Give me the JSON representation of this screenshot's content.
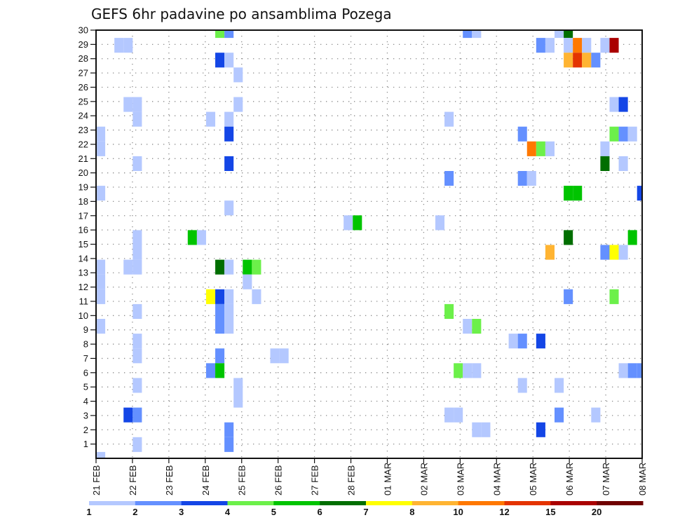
{
  "chart_data": {
    "type": "heatmap",
    "title": "GEFS 6hr padavine po ansamblima Pozega",
    "xlabel": "",
    "ylabel": "",
    "x_unit": "6-hour step from 21 FEB",
    "x_steps": 60,
    "x_tick_labels": [
      "21 FEB",
      "22 FEB",
      "23 FEB",
      "24 FEB",
      "25 FEB",
      "26 FEB",
      "27 FEB",
      "28 FEB",
      "01 MAR",
      "02 MAR",
      "03 MAR",
      "04 MAR",
      "05 MAR",
      "06 MAR",
      "07 MAR",
      "08 MAR"
    ],
    "y_tick_labels": [
      "1",
      "2",
      "3",
      "4",
      "5",
      "6",
      "7",
      "8",
      "9",
      "10",
      "11",
      "12",
      "13",
      "14",
      "15",
      "16",
      "17",
      "18",
      "19",
      "20",
      "21",
      "22",
      "23",
      "24",
      "25",
      "26",
      "27",
      "28",
      "29",
      "30"
    ],
    "ylim": [
      1,
      30
    ],
    "grid": true,
    "colorbar": {
      "position": "bottom",
      "labels": [
        "1",
        "2",
        "3",
        "4",
        "5",
        "6",
        "7",
        "8",
        "10",
        "12",
        "15",
        "20"
      ],
      "colors": [
        "#b4c8ff",
        "#6490ff",
        "#1446e6",
        "#6cf04a",
        "#00c400",
        "#006e00",
        "#ffff00",
        "#ffb432",
        "#ff7800",
        "#e43400",
        "#aa0000",
        "#700000"
      ]
    },
    "cells_format": "[time_step, member, level]",
    "cells": [
      [
        13,
        30,
        4
      ],
      [
        14,
        30,
        2
      ],
      [
        40,
        30,
        2
      ],
      [
        41,
        30,
        1
      ],
      [
        50,
        30,
        1
      ],
      [
        51,
        30,
        6
      ],
      [
        2,
        29,
        1
      ],
      [
        3,
        29,
        1
      ],
      [
        48,
        29,
        2
      ],
      [
        49,
        29,
        1
      ],
      [
        51,
        29,
        1
      ],
      [
        52,
        29,
        9
      ],
      [
        53,
        29,
        1
      ],
      [
        55,
        29,
        1
      ],
      [
        56,
        29,
        11
      ],
      [
        13,
        28,
        3
      ],
      [
        14,
        28,
        1
      ],
      [
        51,
        28,
        8
      ],
      [
        52,
        28,
        10
      ],
      [
        53,
        28,
        8
      ],
      [
        54,
        28,
        2
      ],
      [
        15,
        27,
        1
      ],
      [
        3,
        25,
        1
      ],
      [
        4,
        25,
        1
      ],
      [
        15,
        25,
        1
      ],
      [
        56,
        25,
        1
      ],
      [
        57,
        25,
        3
      ],
      [
        4,
        24,
        1
      ],
      [
        12,
        24,
        1
      ],
      [
        14,
        24,
        1
      ],
      [
        38,
        24,
        1
      ],
      [
        0,
        23,
        1
      ],
      [
        14,
        23,
        3
      ],
      [
        46,
        23,
        2
      ],
      [
        56,
        23,
        4
      ],
      [
        57,
        23,
        2
      ],
      [
        58,
        23,
        1
      ],
      [
        0,
        22,
        1
      ],
      [
        47,
        22,
        9
      ],
      [
        48,
        22,
        4
      ],
      [
        49,
        22,
        1
      ],
      [
        55,
        22,
        1
      ],
      [
        4,
        21,
        1
      ],
      [
        14,
        21,
        3
      ],
      [
        55,
        21,
        6
      ],
      [
        57,
        21,
        1
      ],
      [
        38,
        20,
        2
      ],
      [
        46,
        20,
        2
      ],
      [
        47,
        20,
        1
      ],
      [
        0,
        19,
        1
      ],
      [
        51,
        19,
        5
      ],
      [
        52,
        19,
        5
      ],
      [
        59,
        19,
        3
      ],
      [
        14,
        18,
        1
      ],
      [
        27,
        17,
        1
      ],
      [
        28,
        17,
        5
      ],
      [
        37,
        17,
        1
      ],
      [
        4,
        16,
        1
      ],
      [
        10,
        16,
        5
      ],
      [
        11,
        16,
        1
      ],
      [
        51,
        16,
        6
      ],
      [
        58,
        16,
        5
      ],
      [
        4,
        15,
        1
      ],
      [
        49,
        15,
        8
      ],
      [
        55,
        15,
        2
      ],
      [
        56,
        15,
        7
      ],
      [
        57,
        15,
        1
      ],
      [
        0,
        14,
        1
      ],
      [
        3,
        14,
        1
      ],
      [
        4,
        14,
        1
      ],
      [
        13,
        14,
        6
      ],
      [
        14,
        14,
        1
      ],
      [
        16,
        14,
        5
      ],
      [
        17,
        14,
        4
      ],
      [
        0,
        13,
        1
      ],
      [
        16,
        13,
        1
      ],
      [
        0,
        12,
        1
      ],
      [
        12,
        12,
        7
      ],
      [
        13,
        12,
        3
      ],
      [
        14,
        12,
        1
      ],
      [
        17,
        12,
        1
      ],
      [
        51,
        12,
        2
      ],
      [
        56,
        12,
        4
      ],
      [
        4,
        11,
        1
      ],
      [
        13,
        11,
        2
      ],
      [
        14,
        11,
        1
      ],
      [
        38,
        11,
        4
      ],
      [
        0,
        10,
        1
      ],
      [
        13,
        10,
        2
      ],
      [
        14,
        10,
        1
      ],
      [
        40,
        10,
        1
      ],
      [
        41,
        10,
        4
      ],
      [
        4,
        9,
        1
      ],
      [
        45,
        9,
        1
      ],
      [
        46,
        9,
        2
      ],
      [
        48,
        9,
        3
      ],
      [
        4,
        8,
        1
      ],
      [
        13,
        8,
        2
      ],
      [
        19,
        8,
        1
      ],
      [
        20,
        8,
        1
      ],
      [
        12,
        7,
        2
      ],
      [
        13,
        7,
        5
      ],
      [
        39,
        7,
        4
      ],
      [
        40,
        7,
        1
      ],
      [
        41,
        7,
        1
      ],
      [
        57,
        7,
        1
      ],
      [
        58,
        7,
        2
      ],
      [
        59,
        7,
        2
      ],
      [
        4,
        6,
        1
      ],
      [
        15,
        6,
        1
      ],
      [
        46,
        6,
        1
      ],
      [
        50,
        6,
        1
      ],
      [
        15,
        5,
        1
      ],
      [
        3,
        4,
        3
      ],
      [
        4,
        4,
        2
      ],
      [
        38,
        4,
        1
      ],
      [
        39,
        4,
        1
      ],
      [
        50,
        4,
        2
      ],
      [
        54,
        4,
        1
      ],
      [
        14,
        3,
        2
      ],
      [
        41,
        3,
        1
      ],
      [
        42,
        3,
        1
      ],
      [
        48,
        3,
        3
      ],
      [
        4,
        2,
        1
      ],
      [
        14,
        2,
        2
      ],
      [
        0,
        1,
        1
      ]
    ]
  }
}
